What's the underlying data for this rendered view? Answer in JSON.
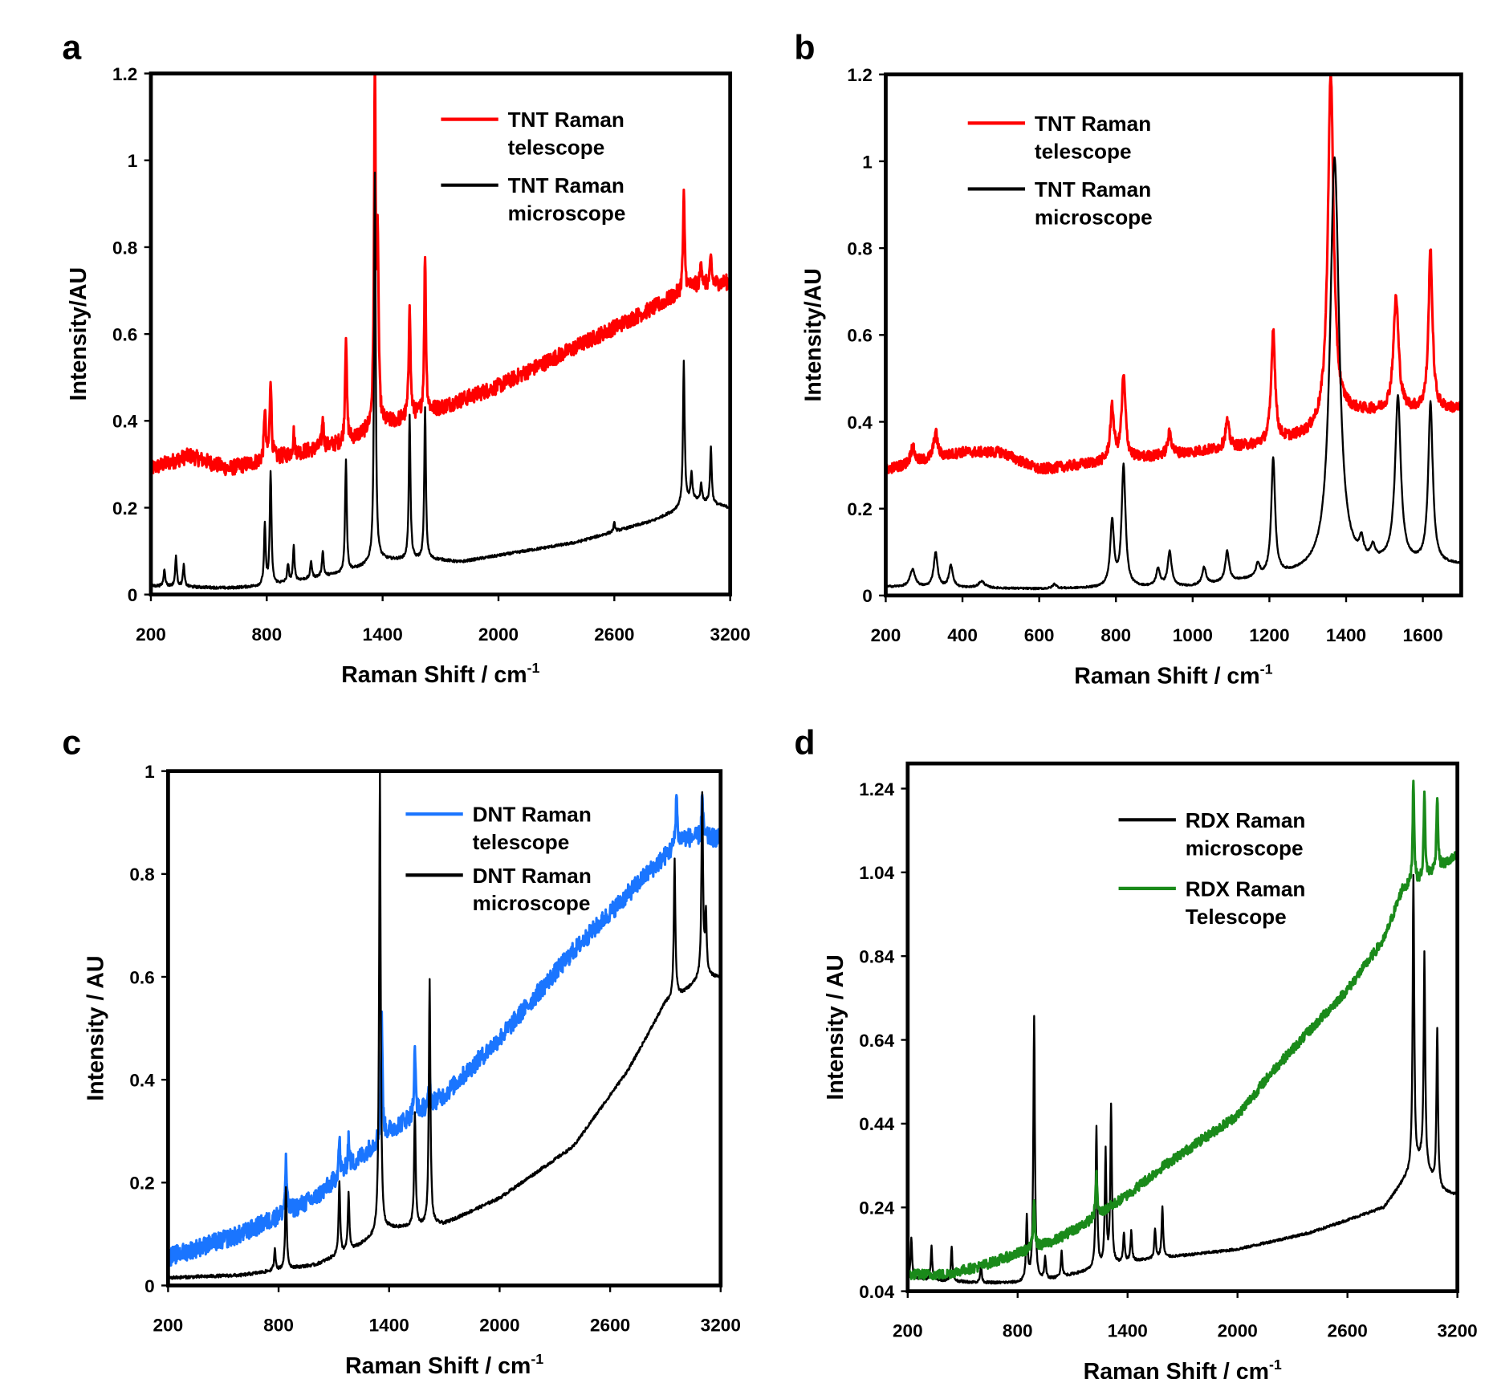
{
  "chart_data": [
    {
      "panel": "a",
      "type": "line",
      "xlabel": "Raman Shift / cm",
      "xlabel_sup": "-1",
      "ylabel": "Intensity/AU",
      "xlim": [
        200,
        3200
      ],
      "ylim": [
        0,
        1.2
      ],
      "xticks": [
        200,
        800,
        1400,
        2000,
        2600,
        3200
      ],
      "yticks": [
        0,
        0.2,
        0.4,
        0.6,
        0.8,
        1,
        1.2
      ],
      "grid": false,
      "legend_placement": "top-right",
      "series": [
        {
          "name": "TNT Raman telescope",
          "legend": [
            "TNT Raman",
            "telescope"
          ],
          "color": "#ff0000",
          "noise": 0.018,
          "width": 5,
          "baseline": [
            [
              200,
              0.29
            ],
            [
              400,
              0.32
            ],
            [
              600,
              0.29
            ],
            [
              800,
              0.31
            ],
            [
              1200,
              0.35
            ],
            [
              1400,
              0.39
            ],
            [
              1700,
              0.43
            ],
            [
              2000,
              0.48
            ],
            [
              2400,
              0.57
            ],
            [
              2800,
              0.66
            ],
            [
              3000,
              0.71
            ],
            [
              3200,
              0.72
            ]
          ],
          "peaks": [
            [
              790,
              0.12
            ],
            [
              820,
              0.19
            ],
            [
              940,
              0.05
            ],
            [
              1090,
              0.07
            ],
            [
              1210,
              0.25
            ],
            [
              1360,
              0.82
            ],
            [
              1375,
              0.4
            ],
            [
              1540,
              0.27
            ],
            [
              1620,
              0.37
            ],
            [
              2960,
              0.22
            ],
            [
              3050,
              0.06
            ],
            [
              3100,
              0.06
            ]
          ]
        },
        {
          "name": "TNT Raman microscope",
          "legend": [
            "TNT Raman",
            "microscope"
          ],
          "color": "#000000",
          "noise": 0.003,
          "width": 5,
          "baseline": [
            [
              200,
              0.02
            ],
            [
              600,
              0.015
            ],
            [
              800,
              0.02
            ],
            [
              1200,
              0.05
            ],
            [
              1400,
              0.08
            ],
            [
              1700,
              0.08
            ],
            [
              1800,
              0.075
            ],
            [
              2000,
              0.09
            ],
            [
              2400,
              0.12
            ],
            [
              2800,
              0.17
            ],
            [
              2900,
              0.19
            ],
            [
              3000,
              0.22
            ],
            [
              3200,
              0.2
            ]
          ],
          "peaks": [
            [
              270,
              0.04
            ],
            [
              330,
              0.07
            ],
            [
              370,
              0.05
            ],
            [
              790,
              0.14
            ],
            [
              820,
              0.26
            ],
            [
              910,
              0.04
            ],
            [
              940,
              0.08
            ],
            [
              1030,
              0.04
            ],
            [
              1090,
              0.06
            ],
            [
              1210,
              0.26
            ],
            [
              1360,
              0.9
            ],
            [
              1540,
              0.33
            ],
            [
              1620,
              0.35
            ],
            [
              2600,
              0.02
            ],
            [
              2960,
              0.33
            ],
            [
              3000,
              0.06
            ],
            [
              3050,
              0.04
            ],
            [
              3100,
              0.13
            ]
          ]
        }
      ]
    },
    {
      "panel": "b",
      "type": "line",
      "xlabel": "Raman Shift / cm",
      "xlabel_sup": "-1",
      "ylabel": "Intensity/AU",
      "xlim": [
        200,
        1700
      ],
      "ylim": [
        0,
        1.2
      ],
      "xticks": [
        200,
        400,
        600,
        800,
        1000,
        1200,
        1400,
        1600
      ],
      "yticks": [
        0,
        0.2,
        0.4,
        0.6,
        0.8,
        1,
        1.2
      ],
      "grid": false,
      "legend_placement": "top-left",
      "series": [
        {
          "name": "TNT Raman telescope",
          "legend": [
            "TNT Raman",
            "telescope"
          ],
          "color": "#ff0000",
          "noise": 0.012,
          "width": 6,
          "baseline": [
            [
              200,
              0.29
            ],
            [
              400,
              0.33
            ],
            [
              500,
              0.33
            ],
            [
              600,
              0.29
            ],
            [
              800,
              0.31
            ],
            [
              1000,
              0.33
            ],
            [
              1200,
              0.35
            ],
            [
              1300,
              0.37
            ],
            [
              1400,
              0.42
            ],
            [
              1700,
              0.43
            ]
          ],
          "peaks": [
            [
              270,
              0.04
            ],
            [
              330,
              0.06
            ],
            [
              790,
              0.12
            ],
            [
              820,
              0.19
            ],
            [
              940,
              0.05
            ],
            [
              1090,
              0.06
            ],
            [
              1210,
              0.26
            ],
            [
              1360,
              0.8,
              9
            ],
            [
              1530,
              0.26,
              8
            ],
            [
              1620,
              0.37,
              6
            ]
          ]
        },
        {
          "name": "TNT Raman microscope",
          "legend": [
            "TNT Raman",
            "microscope"
          ],
          "color": "#000000",
          "noise": 0.002,
          "width": 6,
          "baseline": [
            [
              200,
              0.02
            ],
            [
              600,
              0.015
            ],
            [
              1000,
              0.02
            ],
            [
              1200,
              0.04
            ],
            [
              1300,
              0.05
            ],
            [
              1500,
              0.07
            ],
            [
              1700,
              0.07
            ]
          ],
          "peaks": [
            [
              270,
              0.04,
              8
            ],
            [
              330,
              0.08
            ],
            [
              370,
              0.05
            ],
            [
              450,
              0.015,
              10
            ],
            [
              640,
              0.01
            ],
            [
              790,
              0.15
            ],
            [
              820,
              0.28
            ],
            [
              910,
              0.04
            ],
            [
              940,
              0.08
            ],
            [
              1030,
              0.04
            ],
            [
              1090,
              0.07
            ],
            [
              1170,
              0.03
            ],
            [
              1210,
              0.27
            ],
            [
              1370,
              0.95,
              14
            ],
            [
              1440,
              0.04
            ],
            [
              1470,
              0.03
            ],
            [
              1535,
              0.38,
              9
            ],
            [
              1620,
              0.37,
              7
            ]
          ]
        }
      ]
    },
    {
      "panel": "c",
      "type": "line",
      "xlabel": "Raman Shift / cm",
      "xlabel_sup": "-1",
      "ylabel": "Intensity / AU",
      "xlim": [
        200,
        3200
      ],
      "ylim": [
        0,
        1
      ],
      "xticks": [
        200,
        800,
        1400,
        2000,
        2600,
        3200
      ],
      "yticks": [
        0,
        0.2,
        0.4,
        0.6,
        0.8,
        1
      ],
      "grid": false,
      "legend_placement": "top-center",
      "series": [
        {
          "name": "DNT Raman telescope",
          "legend": [
            "DNT Raman",
            "telescope"
          ],
          "color": "#1a75ff",
          "noise": 0.018,
          "width": 5,
          "baseline": [
            [
              200,
              0.055
            ],
            [
              600,
              0.1
            ],
            [
              1000,
              0.17
            ],
            [
              1400,
              0.3
            ],
            [
              1700,
              0.37
            ],
            [
              2000,
              0.48
            ],
            [
              2400,
              0.65
            ],
            [
              2800,
              0.8
            ],
            [
              3000,
              0.87
            ],
            [
              3200,
              0.87
            ]
          ],
          "peaks": [
            [
              840,
              0.1
            ],
            [
              1130,
              0.07
            ],
            [
              1180,
              0.06
            ],
            [
              1360,
              0.23
            ],
            [
              1540,
              0.12
            ],
            [
              1620,
              0.05
            ],
            [
              2960,
              0.1
            ],
            [
              3100,
              0.08
            ]
          ]
        },
        {
          "name": "DNT Raman microscope",
          "legend": [
            "DNT Raman",
            "microscope"
          ],
          "color": "#000000",
          "noise": 0.003,
          "width": 5,
          "baseline": [
            [
              200,
              0.015
            ],
            [
              600,
              0.02
            ],
            [
              1000,
              0.04
            ],
            [
              1200,
              0.07
            ],
            [
              1400,
              0.11
            ],
            [
              1700,
              0.12
            ],
            [
              2000,
              0.17
            ],
            [
              2400,
              0.27
            ],
            [
              2700,
              0.42
            ],
            [
              2900,
              0.55
            ],
            [
              3000,
              0.57
            ],
            [
              3100,
              0.6
            ],
            [
              3200,
              0.6
            ]
          ],
          "peaks": [
            [
              780,
              0.04
            ],
            [
              840,
              0.16
            ],
            [
              1130,
              0.14
            ],
            [
              1180,
              0.11
            ],
            [
              1350,
              0.9
            ],
            [
              1540,
              0.22
            ],
            [
              1620,
              0.48
            ],
            [
              2950,
              0.27
            ],
            [
              3100,
              0.35
            ],
            [
              3120,
              0.12
            ]
          ]
        }
      ]
    },
    {
      "panel": "d",
      "type": "line",
      "xlabel": "Raman Shift / cm",
      "xlabel_sup": "-1",
      "ylabel": "Intensity / AU",
      "xlim": [
        200,
        3200
      ],
      "ylim": [
        0.04,
        1.3
      ],
      "xticks": [
        200,
        800,
        1400,
        2000,
        2600,
        3200
      ],
      "yticks": [
        0.04,
        0.24,
        0.44,
        0.64,
        0.84,
        1.04,
        1.24
      ],
      "grid": false,
      "legend_placement": "top-center",
      "series": [
        {
          "name": "RDX Raman microscope",
          "legend": [
            "RDX Raman",
            "microscope"
          ],
          "color": "#000000",
          "noise": 0.003,
          "width": 5,
          "baseline": [
            [
              200,
              0.07
            ],
            [
              600,
              0.06
            ],
            [
              800,
              0.06
            ],
            [
              1000,
              0.07
            ],
            [
              1200,
              0.09
            ],
            [
              1400,
              0.11
            ],
            [
              1600,
              0.12
            ],
            [
              2000,
              0.14
            ],
            [
              2400,
              0.18
            ],
            [
              2800,
              0.24
            ],
            [
              2900,
              0.3
            ],
            [
              3000,
              0.35
            ],
            [
              3100,
              0.28
            ],
            [
              3200,
              0.27
            ]
          ],
          "peaks": [
            [
              220,
              0.1
            ],
            [
              330,
              0.08
            ],
            [
              440,
              0.08
            ],
            [
              600,
              0.04
            ],
            [
              850,
              0.15
            ],
            [
              890,
              0.63
            ],
            [
              950,
              0.05
            ],
            [
              1040,
              0.06
            ],
            [
              1230,
              0.34
            ],
            [
              1280,
              0.27
            ],
            [
              1310,
              0.38
            ],
            [
              1380,
              0.07
            ],
            [
              1420,
              0.07
            ],
            [
              1550,
              0.07
            ],
            [
              1590,
              0.12
            ],
            [
              2960,
              0.7
            ],
            [
              3020,
              0.51
            ],
            [
              3090,
              0.38
            ]
          ]
        },
        {
          "name": "RDX Raman Telescope",
          "legend": [
            "RDX Raman",
            "Telescope"
          ],
          "color": "#1a8a1a",
          "noise": 0.012,
          "width": 5,
          "baseline": [
            [
              200,
              0.08
            ],
            [
              400,
              0.08
            ],
            [
              600,
              0.1
            ],
            [
              800,
              0.13
            ],
            [
              1000,
              0.16
            ],
            [
              1200,
              0.21
            ],
            [
              1400,
              0.27
            ],
            [
              1600,
              0.34
            ],
            [
              2000,
              0.46
            ],
            [
              2200,
              0.57
            ],
            [
              2600,
              0.76
            ],
            [
              2800,
              0.88
            ],
            [
              2900,
              1.0
            ],
            [
              3000,
              1.02
            ],
            [
              3200,
              1.08
            ]
          ],
          "peaks": [
            [
              890,
              0.12
            ],
            [
              1230,
              0.1
            ],
            [
              2960,
              0.25
            ],
            [
              3020,
              0.2
            ],
            [
              3090,
              0.18
            ]
          ]
        }
      ]
    }
  ]
}
